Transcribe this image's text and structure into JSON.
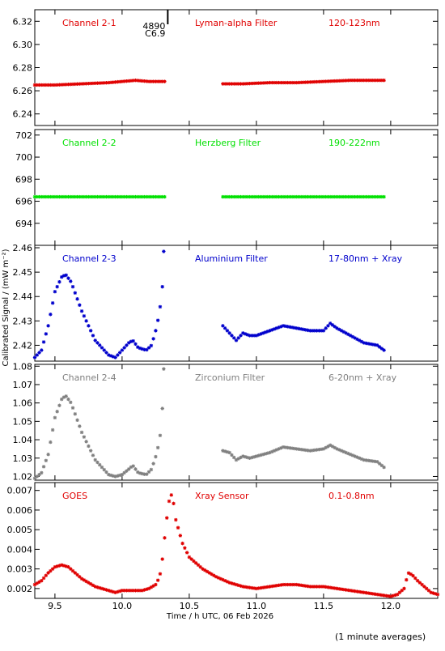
{
  "chart_data": {
    "type": "scatter",
    "x_axis": {
      "label": "Time / h UTC, 06 Feb 2026",
      "range": [
        9.35,
        12.35
      ],
      "ticks": [
        9.5,
        10.0,
        10.5,
        11.0,
        11.5,
        12.0
      ],
      "tick_labels": [
        "9.5",
        "10.0",
        "10.5",
        "11.0",
        "11.5",
        "12.0"
      ]
    },
    "y_axis_label": "Calibrated Signal / (mW m⁻²)",
    "footer": "(1 minute averages)",
    "marker_annotation": {
      "x": 10.34,
      "line1": "4890",
      "line2": "C6.9"
    },
    "panels": [
      {
        "id": "ch21",
        "color": "#e00000",
        "labels": [
          "Channel 2-1",
          "Lyman-alpha Filter",
          "120-123nm"
        ],
        "ylim": [
          6.23,
          6.33
        ],
        "yticks": [
          6.24,
          6.26,
          6.28,
          6.3,
          6.32
        ],
        "ytick_labels": [
          "6.24",
          "6.26",
          "6.28",
          "6.30",
          "6.32"
        ],
        "series": [
          {
            "x": [
              9.35,
              9.5,
              9.7,
              9.9,
              10.0,
              10.1,
              10.2,
              10.32
            ],
            "y": [
              6.265,
              6.265,
              6.266,
              6.267,
              6.268,
              6.269,
              6.268,
              6.268
            ]
          },
          {
            "x": [
              10.75,
              10.9,
              11.1,
              11.3,
              11.5,
              11.7,
              11.95
            ],
            "y": [
              6.266,
              6.266,
              6.267,
              6.267,
              6.268,
              6.269,
              6.269
            ]
          }
        ]
      },
      {
        "id": "ch22",
        "color": "#00e000",
        "labels": [
          "Channel 2-2",
          "Herzberg Filter",
          "190-222nm"
        ],
        "ylim": [
          692.0,
          702.5
        ],
        "yticks": [
          694,
          696,
          698,
          700,
          702
        ],
        "ytick_labels": [
          "694",
          "696",
          "698",
          "700",
          "702"
        ],
        "series": [
          {
            "x": [
              9.35,
              9.6,
              9.9,
              10.1,
              10.32
            ],
            "y": [
              696.4,
              696.4,
              696.4,
              696.4,
              696.4
            ]
          },
          {
            "x": [
              10.75,
              11.0,
              11.3,
              11.6,
              11.95
            ],
            "y": [
              696.4,
              696.4,
              696.4,
              696.4,
              696.4
            ]
          }
        ]
      },
      {
        "id": "ch23",
        "color": "#0000cc",
        "labels": [
          "Channel 2-3",
          "Aluminium Filter",
          "17-80nm + Xray"
        ],
        "ylim": [
          2.4135,
          2.461
        ],
        "yticks": [
          2.42,
          2.43,
          2.44,
          2.45,
          2.46
        ],
        "ytick_labels": [
          "2.42",
          "2.43",
          "2.44",
          "2.45",
          "2.46"
        ],
        "series": [
          {
            "x": [
              9.35,
              9.4,
              9.45,
              9.5,
              9.55,
              9.58,
              9.62,
              9.7,
              9.8,
              9.9,
              9.95,
              10.0,
              10.05,
              10.08,
              10.12,
              10.18,
              10.22,
              10.26,
              10.29,
              10.3
            ],
            "y": [
              2.415,
              2.418,
              2.428,
              2.442,
              2.448,
              2.449,
              2.446,
              2.434,
              2.422,
              2.416,
              2.415,
              2.418,
              2.421,
              2.422,
              2.419,
              2.418,
              2.42,
              2.428,
              2.438,
              2.444
            ]
          },
          {
            "x": [
              10.75,
              10.8,
              10.85,
              10.9,
              10.95,
              11.0,
              11.1,
              11.2,
              11.3,
              11.4,
              11.5,
              11.55,
              11.6,
              11.7,
              11.8,
              11.9,
              11.95
            ],
            "y": [
              2.428,
              2.425,
              2.422,
              2.425,
              2.424,
              2.424,
              2.426,
              2.428,
              2.427,
              2.426,
              2.426,
              2.429,
              2.427,
              2.424,
              2.421,
              2.42,
              2.418
            ]
          }
        ],
        "outliers": [
          {
            "x": 10.31,
            "y": 2.4585
          }
        ]
      },
      {
        "id": "ch24",
        "color": "#808080",
        "labels": [
          "Channel 2-4",
          "Zirconium Filter",
          "6-20nm + Xray"
        ],
        "ylim": [
          1.018,
          1.081
        ],
        "yticks": [
          1.02,
          1.03,
          1.04,
          1.05,
          1.06,
          1.07,
          1.08
        ],
        "ytick_labels": [
          "1.02",
          "1.03",
          "1.04",
          "1.05",
          "1.06",
          "1.07",
          "1.08"
        ],
        "series": [
          {
            "x": [
              9.35,
              9.4,
              9.45,
              9.5,
              9.55,
              9.58,
              9.62,
              9.7,
              9.8,
              9.9,
              9.95,
              10.0,
              10.05,
              10.08,
              10.12,
              10.18,
              10.22,
              10.26,
              10.29,
              10.3
            ],
            "y": [
              1.019,
              1.022,
              1.032,
              1.052,
              1.062,
              1.064,
              1.06,
              1.044,
              1.029,
              1.021,
              1.02,
              1.021,
              1.024,
              1.026,
              1.022,
              1.021,
              1.024,
              1.033,
              1.045,
              1.057
            ]
          },
          {
            "x": [
              10.75,
              10.8,
              10.85,
              10.9,
              10.95,
              11.0,
              11.1,
              11.2,
              11.3,
              11.4,
              11.5,
              11.55,
              11.6,
              11.7,
              11.8,
              11.9,
              11.95
            ],
            "y": [
              1.034,
              1.033,
              1.029,
              1.031,
              1.03,
              1.031,
              1.033,
              1.036,
              1.035,
              1.034,
              1.035,
              1.037,
              1.035,
              1.032,
              1.029,
              1.028,
              1.025
            ]
          }
        ],
        "outliers": [
          {
            "x": 10.31,
            "y": 1.0785
          }
        ]
      },
      {
        "id": "goes",
        "color": "#e00000",
        "labels": [
          "GOES",
          "Xray Sensor",
          "0.1-0.8nm"
        ],
        "ylim": [
          0.0015,
          0.0074
        ],
        "yticks": [
          0.002,
          0.003,
          0.004,
          0.005,
          0.006,
          0.007
        ],
        "ytick_labels": [
          "0.002",
          "0.003",
          "0.004",
          "0.005",
          "0.006",
          "0.007"
        ],
        "series": [
          {
            "x": [
              9.35,
              9.4,
              9.45,
              9.5,
              9.55,
              9.6,
              9.65,
              9.7,
              9.8,
              9.9,
              9.95,
              10.0,
              10.05,
              10.1,
              10.15,
              10.2,
              10.25,
              10.28,
              10.3,
              10.32,
              10.34,
              10.36,
              10.38,
              10.4,
              10.45,
              10.5,
              10.6,
              10.7,
              10.8,
              10.9,
              11.0,
              11.1,
              11.2,
              11.3,
              11.4,
              11.5,
              11.6,
              11.7,
              11.8,
              11.9,
              12.0,
              12.05,
              12.1,
              12.13,
              12.16,
              12.2,
              12.25,
              12.3,
              12.35
            ],
            "y": [
              0.0022,
              0.0024,
              0.0028,
              0.0031,
              0.0032,
              0.0031,
              0.0028,
              0.0025,
              0.0021,
              0.0019,
              0.0018,
              0.0019,
              0.0019,
              0.0019,
              0.0019,
              0.002,
              0.0022,
              0.0026,
              0.0035,
              0.0048,
              0.006,
              0.0069,
              0.0065,
              0.0055,
              0.0043,
              0.0036,
              0.003,
              0.0026,
              0.0023,
              0.0021,
              0.002,
              0.0021,
              0.0022,
              0.0022,
              0.0021,
              0.0021,
              0.002,
              0.0019,
              0.0018,
              0.0017,
              0.0016,
              0.0017,
              0.002,
              0.0028,
              0.0027,
              0.0024,
              0.0021,
              0.0018,
              0.0017
            ]
          }
        ]
      }
    ]
  }
}
